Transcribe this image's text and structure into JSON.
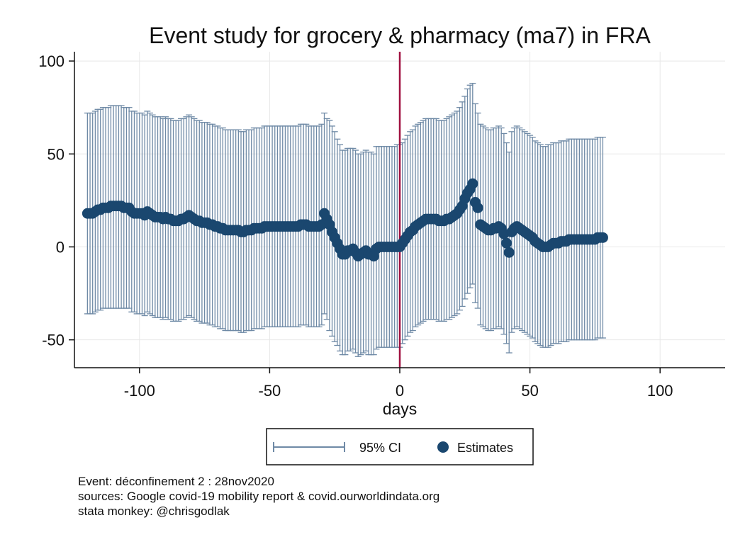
{
  "chart_data": {
    "type": "scatter",
    "title": "Event study for grocery & pharmacy (ma7) in FRA",
    "xlabel": "days",
    "ylabel": "",
    "xlim": [
      -125,
      125
    ],
    "ylim": [
      -65,
      105
    ],
    "xticks": [
      -100,
      -50,
      0,
      50,
      100
    ],
    "yticks": [
      -50,
      0,
      50,
      100
    ],
    "grid": true,
    "legend_position": "bottom",
    "event_line_x": 0,
    "colors": {
      "ci": "#6f8aa6",
      "estimates": "#1a476f",
      "event_line": "#a01040",
      "grid": "#e8e8e8"
    },
    "series": [
      {
        "name": "95% CI",
        "kind": "errorbar"
      },
      {
        "name": "Estimates",
        "kind": "marker"
      }
    ],
    "points": [
      [
        -120,
        18,
        -36,
        72
      ],
      [
        -119,
        18,
        -36,
        72
      ],
      [
        -118,
        18,
        -36,
        72
      ],
      [
        -117,
        19,
        -35,
        73
      ],
      [
        -116,
        20,
        -34,
        74
      ],
      [
        -115,
        20,
        -34,
        74
      ],
      [
        -114,
        21,
        -33,
        75
      ],
      [
        -113,
        21,
        -33,
        75
      ],
      [
        -112,
        21,
        -33,
        75
      ],
      [
        -111,
        22,
        -33,
        76
      ],
      [
        -110,
        22,
        -33,
        76
      ],
      [
        -109,
        22,
        -33,
        76
      ],
      [
        -108,
        22,
        -33,
        76
      ],
      [
        -107,
        22,
        -33,
        76
      ],
      [
        -106,
        21,
        -33,
        75
      ],
      [
        -105,
        21,
        -33,
        75
      ],
      [
        -104,
        21,
        -33,
        75
      ],
      [
        -103,
        19,
        -35,
        73
      ],
      [
        -102,
        18,
        -35,
        73
      ],
      [
        -101,
        18,
        -36,
        72
      ],
      [
        -100,
        18,
        -36,
        72
      ],
      [
        -99,
        18,
        -36,
        72
      ],
      [
        -98,
        17,
        -37,
        71
      ],
      [
        -97,
        19,
        -35,
        73
      ],
      [
        -96,
        18,
        -36,
        72
      ],
      [
        -95,
        17,
        -37,
        71
      ],
      [
        -94,
        16,
        -38,
        70
      ],
      [
        -93,
        16,
        -38,
        70
      ],
      [
        -92,
        16,
        -38,
        70
      ],
      [
        -91,
        15,
        -39,
        69
      ],
      [
        -90,
        16,
        -38,
        70
      ],
      [
        -89,
        15,
        -39,
        69
      ],
      [
        -88,
        15,
        -39,
        69
      ],
      [
        -87,
        14,
        -40,
        68
      ],
      [
        -86,
        14,
        -40,
        68
      ],
      [
        -85,
        14,
        -40,
        68
      ],
      [
        -84,
        15,
        -39,
        69
      ],
      [
        -83,
        15,
        -39,
        69
      ],
      [
        -82,
        16,
        -38,
        70
      ],
      [
        -81,
        17,
        -37,
        71
      ],
      [
        -80,
        16,
        -38,
        70
      ],
      [
        -79,
        15,
        -39,
        69
      ],
      [
        -78,
        14,
        -40,
        68
      ],
      [
        -77,
        14,
        -40,
        68
      ],
      [
        -76,
        13,
        -41,
        67
      ],
      [
        -75,
        13,
        -41,
        67
      ],
      [
        -74,
        13,
        -41,
        67
      ],
      [
        -73,
        12,
        -42,
        66
      ],
      [
        -72,
        12,
        -42,
        66
      ],
      [
        -71,
        11,
        -43,
        65
      ],
      [
        -70,
        11,
        -43,
        65
      ],
      [
        -69,
        10,
        -44,
        64
      ],
      [
        -68,
        10,
        -44,
        64
      ],
      [
        -67,
        9,
        -45,
        63
      ],
      [
        -66,
        9,
        -45,
        63
      ],
      [
        -65,
        9,
        -45,
        63
      ],
      [
        -64,
        9,
        -45,
        63
      ],
      [
        -63,
        9,
        -45,
        63
      ],
      [
        -62,
        9,
        -45,
        63
      ],
      [
        -61,
        8,
        -46,
        62
      ],
      [
        -60,
        8,
        -46,
        62
      ],
      [
        -59,
        9,
        -45,
        63
      ],
      [
        -58,
        9,
        -45,
        63
      ],
      [
        -57,
        9,
        -45,
        63
      ],
      [
        -56,
        10,
        -44,
        64
      ],
      [
        -55,
        10,
        -44,
        64
      ],
      [
        -54,
        10,
        -44,
        64
      ],
      [
        -53,
        10,
        -44,
        64
      ],
      [
        -52,
        11,
        -43,
        65
      ],
      [
        -51,
        11,
        -43,
        65
      ],
      [
        -50,
        11,
        -43,
        65
      ],
      [
        -49,
        11,
        -43,
        65
      ],
      [
        -48,
        11,
        -43,
        65
      ],
      [
        -47,
        11,
        -43,
        65
      ],
      [
        -46,
        11,
        -43,
        65
      ],
      [
        -45,
        11,
        -43,
        65
      ],
      [
        -44,
        11,
        -43,
        65
      ],
      [
        -43,
        11,
        -43,
        65
      ],
      [
        -42,
        11,
        -43,
        65
      ],
      [
        -41,
        11,
        -43,
        65
      ],
      [
        -40,
        11,
        -43,
        65
      ],
      [
        -39,
        11,
        -43,
        65
      ],
      [
        -38,
        12,
        -42,
        66
      ],
      [
        -37,
        12,
        -42,
        66
      ],
      [
        -36,
        12,
        -42,
        66
      ],
      [
        -35,
        11,
        -43,
        65
      ],
      [
        -34,
        11,
        -43,
        65
      ],
      [
        -33,
        11,
        -43,
        65
      ],
      [
        -32,
        11,
        -43,
        65
      ],
      [
        -31,
        11,
        -43,
        65
      ],
      [
        -30,
        12,
        -42,
        66
      ],
      [
        -29,
        18,
        -36,
        72
      ],
      [
        -28,
        15,
        -39,
        69
      ],
      [
        -27,
        12,
        -45,
        68
      ],
      [
        -26,
        8,
        -48,
        65
      ],
      [
        -25,
        5,
        -51,
        62
      ],
      [
        -24,
        2,
        -53,
        58
      ],
      [
        -23,
        -1,
        -56,
        55
      ],
      [
        -22,
        -4,
        -58,
        52
      ],
      [
        -21,
        -4,
        -58,
        52
      ],
      [
        -20,
        -2,
        -56,
        53
      ],
      [
        -19,
        -2,
        -56,
        53
      ],
      [
        -18,
        -1,
        -55,
        53
      ],
      [
        -17,
        -3,
        -57,
        52
      ],
      [
        -16,
        -5,
        -59,
        50
      ],
      [
        -15,
        -4,
        -58,
        50
      ],
      [
        -14,
        -3,
        -57,
        51
      ],
      [
        -13,
        -2,
        -56,
        52
      ],
      [
        -12,
        -4,
        -58,
        51
      ],
      [
        -11,
        -4,
        -58,
        51
      ],
      [
        -10,
        -5,
        -58,
        50
      ],
      [
        -9,
        -1,
        -55,
        54
      ],
      [
        -8,
        0,
        -54,
        54
      ],
      [
        -7,
        0,
        -54,
        54
      ],
      [
        -6,
        0,
        -54,
        54
      ],
      [
        -5,
        0,
        -54,
        54
      ],
      [
        -4,
        0,
        -54,
        54
      ],
      [
        -3,
        0,
        -54,
        54
      ],
      [
        -2,
        0,
        -54,
        54
      ],
      [
        -1,
        0,
        -54,
        55
      ],
      [
        0,
        0,
        -54,
        55
      ],
      [
        1,
        2,
        -52,
        56
      ],
      [
        2,
        4,
        -50,
        58
      ],
      [
        3,
        6,
        -48,
        60
      ],
      [
        4,
        8,
        -46,
        62
      ],
      [
        5,
        9,
        -45,
        63
      ],
      [
        6,
        11,
        -43,
        65
      ],
      [
        7,
        12,
        -42,
        66
      ],
      [
        8,
        13,
        -41,
        67
      ],
      [
        9,
        14,
        -40,
        68
      ],
      [
        10,
        15,
        -39,
        69
      ],
      [
        11,
        15,
        -39,
        69
      ],
      [
        12,
        15,
        -39,
        69
      ],
      [
        13,
        15,
        -39,
        69
      ],
      [
        14,
        15,
        -39,
        69
      ],
      [
        15,
        14,
        -40,
        68
      ],
      [
        16,
        14,
        -40,
        68
      ],
      [
        17,
        14,
        -40,
        68
      ],
      [
        18,
        15,
        -39,
        69
      ],
      [
        19,
        15,
        -39,
        70
      ],
      [
        20,
        16,
        -38,
        71
      ],
      [
        21,
        17,
        -37,
        72
      ],
      [
        22,
        18,
        -36,
        73
      ],
      [
        23,
        20,
        -34,
        75
      ],
      [
        24,
        22,
        -32,
        78
      ],
      [
        25,
        26,
        -28,
        81
      ],
      [
        26,
        29,
        -25,
        85
      ],
      [
        27,
        31,
        -22,
        87
      ],
      [
        28,
        34,
        -20,
        88
      ],
      [
        29,
        24,
        -30,
        77
      ],
      [
        30,
        21,
        -33,
        72
      ],
      [
        31,
        12,
        -42,
        66
      ],
      [
        32,
        11,
        -43,
        65
      ],
      [
        33,
        10,
        -44,
        64
      ],
      [
        34,
        9,
        -45,
        63
      ],
      [
        35,
        9,
        -45,
        63
      ],
      [
        36,
        10,
        -44,
        64
      ],
      [
        37,
        10,
        -44,
        64
      ],
      [
        38,
        11,
        -43,
        65
      ],
      [
        39,
        10,
        -44,
        64
      ],
      [
        40,
        7,
        -47,
        61
      ],
      [
        41,
        2,
        -52,
        56
      ],
      [
        42,
        -3,
        -57,
        51
      ],
      [
        43,
        8,
        -46,
        62
      ],
      [
        44,
        10,
        -44,
        64
      ],
      [
        45,
        11,
        -43,
        65
      ],
      [
        46,
        10,
        -44,
        64
      ],
      [
        47,
        9,
        -45,
        63
      ],
      [
        48,
        8,
        -46,
        62
      ],
      [
        49,
        7,
        -47,
        61
      ],
      [
        50,
        6,
        -48,
        60
      ],
      [
        51,
        5,
        -49,
        59
      ],
      [
        52,
        3,
        -51,
        57
      ],
      [
        53,
        2,
        -52,
        56
      ],
      [
        54,
        1,
        -53,
        55
      ],
      [
        55,
        0,
        -54,
        54
      ],
      [
        56,
        0,
        -54,
        54
      ],
      [
        57,
        0,
        -54,
        55
      ],
      [
        58,
        1,
        -53,
        55
      ],
      [
        59,
        2,
        -52,
        56
      ],
      [
        60,
        2,
        -52,
        56
      ],
      [
        61,
        2,
        -52,
        56
      ],
      [
        62,
        3,
        -51,
        57
      ],
      [
        63,
        3,
        -51,
        57
      ],
      [
        64,
        3,
        -51,
        57
      ],
      [
        65,
        4,
        -50,
        58
      ],
      [
        66,
        4,
        -50,
        58
      ],
      [
        67,
        4,
        -50,
        58
      ],
      [
        68,
        4,
        -50,
        58
      ],
      [
        69,
        4,
        -50,
        58
      ],
      [
        70,
        4,
        -50,
        58
      ],
      [
        71,
        4,
        -50,
        58
      ],
      [
        72,
        4,
        -50,
        58
      ],
      [
        73,
        4,
        -50,
        58
      ],
      [
        74,
        4,
        -50,
        58
      ],
      [
        75,
        4,
        -50,
        58
      ],
      [
        76,
        5,
        -49,
        59
      ],
      [
        77,
        5,
        -49,
        59
      ],
      [
        78,
        5,
        -49,
        59
      ]
    ]
  },
  "legend": {
    "ci_label": "95% CI",
    "estimates_label": "Estimates"
  },
  "notes": {
    "line1": "Event: déconfinement 2 : 28nov2020",
    "line2": "sources: Google covid-19 mobility report & covid.ourworldindata.org",
    "line3": "stata monkey: @chrisgodlak"
  }
}
